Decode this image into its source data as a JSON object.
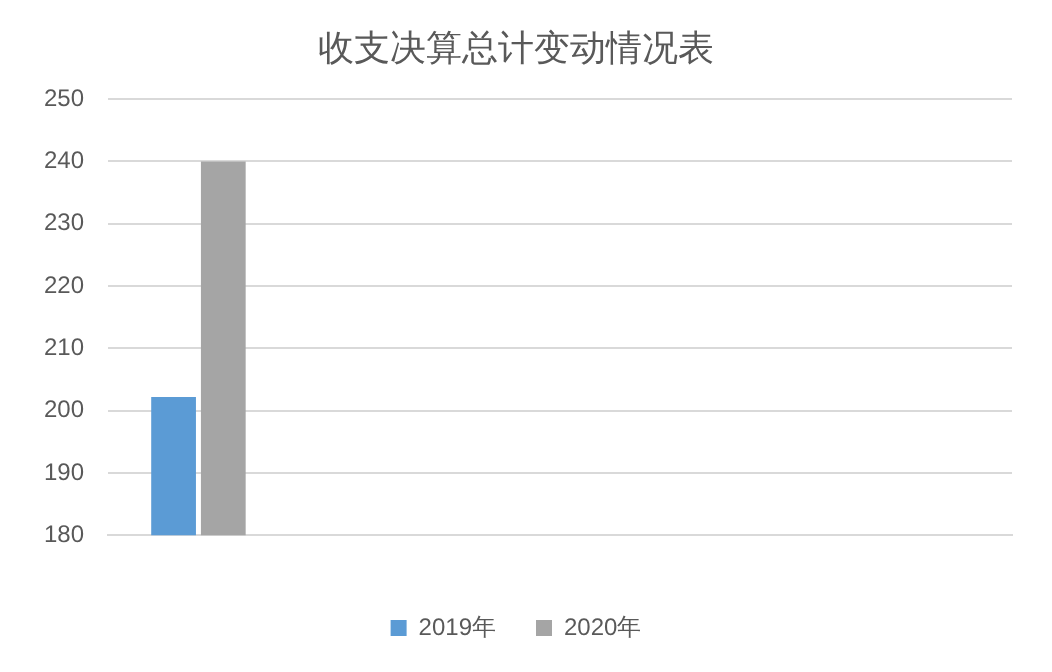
{
  "chart_data": {
    "type": "bar",
    "title": "收支决算总计变动情况表",
    "categories": [
      null,
      null,
      null,
      null,
      null
    ],
    "series": [
      {
        "name": "2019年",
        "color": "#5b9bd5",
        "values": [
          202.2,
          null,
          null,
          null,
          null
        ]
      },
      {
        "name": "2020年",
        "color": "#a5a5a5",
        "values": [
          240,
          null,
          null,
          null,
          null
        ]
      }
    ],
    "ylim": [
      180,
      250
    ],
    "yticks": [
      180,
      190,
      200,
      210,
      220,
      230,
      240,
      250
    ],
    "grid": "y",
    "legend": "bottom"
  }
}
